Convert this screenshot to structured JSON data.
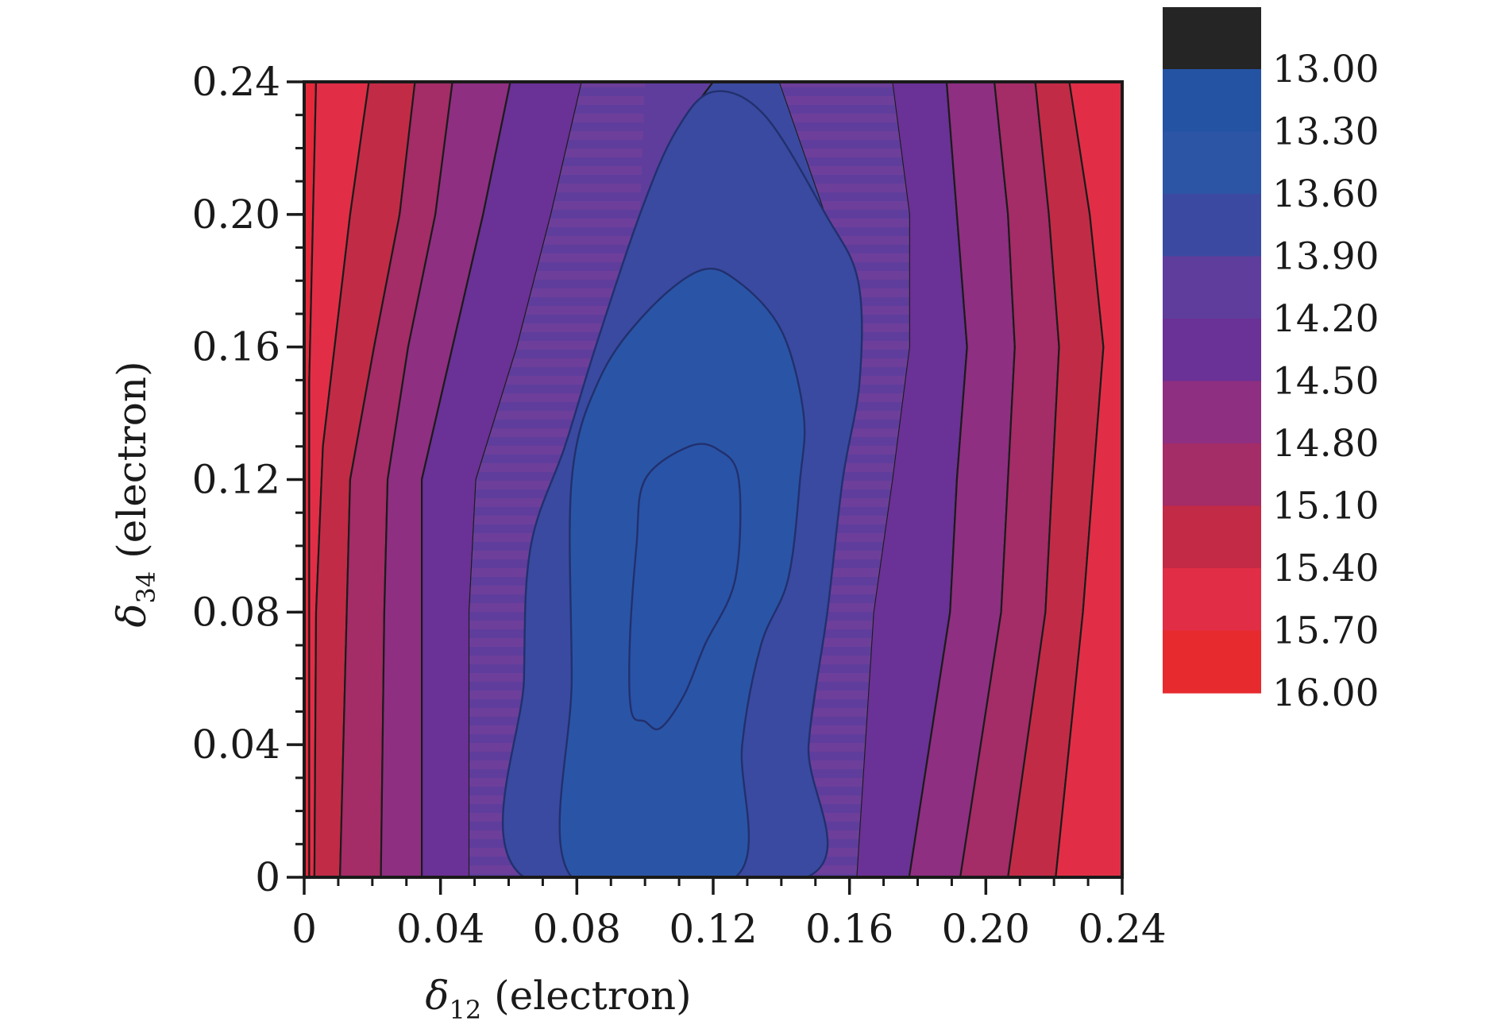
{
  "chart_data": {
    "type": "heatmap",
    "subtype": "filled-contour",
    "title": "",
    "xlabel": {
      "symbol": "δ",
      "sub": "12",
      "unit": " (electron)"
    },
    "ylabel": {
      "symbol": "δ",
      "sub": "34",
      "unit": " (electron)"
    },
    "xlim": [
      0,
      0.24
    ],
    "ylim": [
      0,
      0.24
    ],
    "x_ticks": [
      "0",
      "0.04",
      "0.08",
      "0.12",
      "0.16",
      "0.20",
      "0.24"
    ],
    "y_ticks": [
      "0",
      "0.04",
      "0.08",
      "0.12",
      "0.16",
      "0.20",
      "0.24"
    ],
    "x_minor_step": 0.01,
    "y_minor_step": 0.01,
    "grid": false,
    "colorbar": {
      "position": "right",
      "levels": [
        "13.00",
        "13.30",
        "13.60",
        "13.90",
        "14.20",
        "14.50",
        "14.80",
        "15.10",
        "15.40",
        "15.70",
        "16.00"
      ],
      "colors": [
        "#252525",
        "#2453a4",
        "#2d55a6",
        "#3b4aa0",
        "#5f3d9c",
        "#6a3196",
        "#8e2f81",
        "#a42c67",
        "#c22a45",
        "#e12e46",
        "#e72a2e"
      ]
    },
    "contours": [
      {
        "level": 13.6,
        "color": "#2953a6",
        "points": [
          [
            0.1,
            0.047
          ],
          [
            0.096,
            0.05
          ],
          [
            0.0955,
            0.07
          ],
          [
            0.0975,
            0.1
          ],
          [
            0.1,
            0.12
          ],
          [
            0.113,
            0.13
          ],
          [
            0.1215,
            0.129
          ],
          [
            0.1275,
            0.12
          ],
          [
            0.1265,
            0.09
          ],
          [
            0.1175,
            0.07
          ],
          [
            0.1115,
            0.055
          ],
          [
            0.1045,
            0.045
          ]
        ]
      },
      {
        "level": 13.9,
        "color": "#2a55a6",
        "points": [
          [
            0.0785,
            0
          ],
          [
            0.0785,
            0.06
          ],
          [
            0.0785,
            0.12
          ],
          [
            0.0865,
            0.15
          ],
          [
            0.1,
            0.17
          ],
          [
            0.116,
            0.183
          ],
          [
            0.127,
            0.18
          ],
          [
            0.14,
            0.165
          ],
          [
            0.1465,
            0.14
          ],
          [
            0.1455,
            0.12
          ],
          [
            0.142,
            0.09
          ],
          [
            0.134,
            0.07
          ],
          [
            0.1285,
            0.04
          ],
          [
            0.1265,
            0
          ]
        ]
      },
      {
        "level": 14.2,
        "color": "#3a4aa0",
        "points": [
          [
            0.0645,
            0
          ],
          [
            0.0645,
            0.06
          ],
          [
            0.0665,
            0.1
          ],
          [
            0.0765,
            0.13
          ],
          [
            0.0855,
            0.16
          ],
          [
            0.0985,
            0.2
          ],
          [
            0.109,
            0.225
          ],
          [
            0.12,
            0.237
          ],
          [
            0.135,
            0.23
          ],
          [
            0.153,
            0.2
          ],
          [
            0.1625,
            0.18
          ],
          [
            0.163,
            0.15
          ],
          [
            0.158,
            0.12
          ],
          [
            0.1535,
            0.08
          ],
          [
            0.148,
            0.04
          ],
          [
            0.1475,
            0
          ]
        ]
      }
    ],
    "bands": [
      {
        "color": "#e5293a",
        "left": [
          [
            0,
            0
          ],
          [
            0,
            0.24
          ]
        ],
        "right": [
          [
            0.0035,
            0.24
          ],
          [
            0.0015,
            0.15
          ],
          [
            0.0015,
            0
          ]
        ]
      },
      {
        "color": "#e12e46",
        "left": [
          [
            0.0015,
            0
          ],
          [
            0.0015,
            0.15
          ],
          [
            0.0035,
            0.24
          ]
        ],
        "right": [
          [
            0.019,
            0.24
          ],
          [
            0.0135,
            0.2
          ],
          [
            0.0055,
            0.13
          ],
          [
            0.0035,
            0.08
          ],
          [
            0.003,
            0
          ]
        ]
      },
      {
        "color": "#c22b46",
        "left": [
          [
            0.003,
            0
          ],
          [
            0.0035,
            0.08
          ],
          [
            0.0055,
            0.13
          ],
          [
            0.0135,
            0.2
          ],
          [
            0.019,
            0.24
          ]
        ],
        "right": [
          [
            0.0325,
            0.24
          ],
          [
            0.028,
            0.2
          ],
          [
            0.0205,
            0.16
          ],
          [
            0.0135,
            0.12
          ],
          [
            0.0125,
            0.08
          ],
          [
            0.0105,
            0
          ]
        ]
      },
      {
        "color": "#a42c67",
        "left": [
          [
            0.0105,
            0
          ],
          [
            0.0125,
            0.08
          ],
          [
            0.0135,
            0.12
          ],
          [
            0.0205,
            0.16
          ],
          [
            0.028,
            0.2
          ],
          [
            0.0325,
            0.24
          ]
        ],
        "right": [
          [
            0.0435,
            0.24
          ],
          [
            0.0385,
            0.2
          ],
          [
            0.0305,
            0.16
          ],
          [
            0.0245,
            0.12
          ],
          [
            0.0235,
            0.08
          ],
          [
            0.0225,
            0
          ]
        ]
      },
      {
        "color": "#8e2f81",
        "left": [
          [
            0.0225,
            0
          ],
          [
            0.0235,
            0.08
          ],
          [
            0.0245,
            0.12
          ],
          [
            0.0305,
            0.16
          ],
          [
            0.0385,
            0.2
          ],
          [
            0.0435,
            0.24
          ]
        ],
        "right": [
          [
            0.0605,
            0.24
          ],
          [
            0.0525,
            0.2
          ],
          [
            0.0435,
            0.16
          ],
          [
            0.0345,
            0.12
          ],
          [
            0.0345,
            0.08
          ],
          [
            0.0345,
            0
          ]
        ]
      },
      {
        "color": "#6a3196",
        "left": [
          [
            0.0345,
            0
          ],
          [
            0.0345,
            0.08
          ],
          [
            0.0345,
            0.12
          ],
          [
            0.0435,
            0.16
          ],
          [
            0.0525,
            0.2
          ],
          [
            0.0605,
            0.24
          ]
        ],
        "right": [
          [
            0.0815,
            0.24
          ],
          [
            0.0725,
            0.2
          ],
          [
            0.0625,
            0.16
          ],
          [
            0.0505,
            0.12
          ],
          [
            0.0485,
            0.08
          ],
          [
            0.0485,
            0
          ]
        ]
      },
      {
        "color": "#5f3d9c",
        "left": [
          [
            0.0485,
            0
          ],
          [
            0.0485,
            0.08
          ],
          [
            0.0505,
            0.12
          ],
          [
            0.0625,
            0.16
          ],
          [
            0.0725,
            0.2
          ],
          [
            0.0815,
            0.24
          ]
        ],
        "right": [
          [
            0.1725,
            0.24
          ],
          [
            0.1775,
            0.2
          ],
          [
            0.1775,
            0.16
          ],
          [
            0.1725,
            0.12
          ],
          [
            0.167,
            0.08
          ],
          [
            0.162,
            0
          ]
        ]
      },
      {
        "color": "#3b4aa0",
        "left": [
          [
            0.0645,
            0
          ],
          [
            0.0645,
            0.06
          ],
          [
            0.0665,
            0.1
          ],
          [
            0.0765,
            0.13
          ],
          [
            0.0855,
            0.16
          ],
          [
            0.0985,
            0.2
          ],
          [
            0.109,
            0.225
          ],
          [
            0.12,
            0.24
          ]
        ],
        "right": [
          [
            0.1395,
            0.24
          ],
          [
            0.153,
            0.2
          ],
          [
            0.1625,
            0.18
          ],
          [
            0.163,
            0.15
          ],
          [
            0.158,
            0.12
          ],
          [
            0.1535,
            0.08
          ],
          [
            0.148,
            0.04
          ],
          [
            0.1475,
            0
          ]
        ]
      },
      {
        "color": "#6a3196",
        "left": [
          [
            0.162,
            0
          ],
          [
            0.167,
            0.08
          ],
          [
            0.1725,
            0.12
          ],
          [
            0.1775,
            0.16
          ],
          [
            0.1775,
            0.2
          ],
          [
            0.1725,
            0.24
          ]
        ],
        "right": [
          [
            0.1885,
            0.24
          ],
          [
            0.1915,
            0.2
          ],
          [
            0.1945,
            0.16
          ],
          [
            0.1915,
            0.12
          ],
          [
            0.1895,
            0.08
          ],
          [
            0.1775,
            0
          ]
        ]
      },
      {
        "color": "#8e2f81",
        "left": [
          [
            0.1775,
            0
          ],
          [
            0.1895,
            0.08
          ],
          [
            0.1915,
            0.12
          ],
          [
            0.1945,
            0.16
          ],
          [
            0.1915,
            0.2
          ],
          [
            0.1885,
            0.24
          ]
        ],
        "right": [
          [
            0.2025,
            0.24
          ],
          [
            0.2065,
            0.2
          ],
          [
            0.2085,
            0.16
          ],
          [
            0.2065,
            0.12
          ],
          [
            0.2045,
            0.08
          ],
          [
            0.1925,
            0
          ]
        ]
      },
      {
        "color": "#a42c67",
        "left": [
          [
            0.1925,
            0
          ],
          [
            0.2045,
            0.08
          ],
          [
            0.2065,
            0.12
          ],
          [
            0.2085,
            0.16
          ],
          [
            0.2065,
            0.2
          ],
          [
            0.2025,
            0.24
          ]
        ],
        "right": [
          [
            0.2145,
            0.24
          ],
          [
            0.2185,
            0.2
          ],
          [
            0.2215,
            0.16
          ],
          [
            0.2195,
            0.12
          ],
          [
            0.2175,
            0.08
          ],
          [
            0.2065,
            0
          ]
        ]
      },
      {
        "color": "#c22b46",
        "left": [
          [
            0.2065,
            0
          ],
          [
            0.2175,
            0.08
          ],
          [
            0.2195,
            0.12
          ],
          [
            0.2215,
            0.16
          ],
          [
            0.2185,
            0.2
          ],
          [
            0.2145,
            0.24
          ]
        ],
        "right": [
          [
            0.2245,
            0.24
          ],
          [
            0.2305,
            0.2
          ],
          [
            0.2345,
            0.16
          ],
          [
            0.2315,
            0.12
          ],
          [
            0.2285,
            0.08
          ],
          [
            0.2205,
            0
          ]
        ]
      },
      {
        "color": "#e12e46",
        "left": [
          [
            0.2205,
            0
          ],
          [
            0.2285,
            0.08
          ],
          [
            0.2315,
            0.12
          ],
          [
            0.2345,
            0.16
          ],
          [
            0.2305,
            0.2
          ],
          [
            0.2245,
            0.24
          ]
        ],
        "right": [
          [
            0.24,
            0.24
          ],
          [
            0.24,
            0
          ]
        ]
      }
    ],
    "hatched_bands": [
      {
        "left": [
          [
            0.0485,
            0
          ],
          [
            0.0485,
            0.08
          ],
          [
            0.0505,
            0.12
          ],
          [
            0.0625,
            0.16
          ],
          [
            0.0725,
            0.2
          ],
          [
            0.0815,
            0.24
          ]
        ],
        "right": [
          [
            0.1,
            0.24
          ],
          [
            0.0985,
            0.2
          ],
          [
            0.0855,
            0.16
          ],
          [
            0.0765,
            0.13
          ],
          [
            0.0665,
            0.1
          ],
          [
            0.0645,
            0.06
          ],
          [
            0.0645,
            0
          ]
        ]
      },
      {
        "left": [
          [
            0.1475,
            0
          ],
          [
            0.148,
            0.04
          ],
          [
            0.1535,
            0.08
          ],
          [
            0.158,
            0.12
          ],
          [
            0.163,
            0.15
          ],
          [
            0.1625,
            0.18
          ],
          [
            0.153,
            0.2
          ],
          [
            0.1395,
            0.24
          ]
        ],
        "right": [
          [
            0.1725,
            0.24
          ],
          [
            0.1775,
            0.2
          ],
          [
            0.1775,
            0.16
          ],
          [
            0.1725,
            0.12
          ],
          [
            0.167,
            0.08
          ],
          [
            0.162,
            0
          ]
        ]
      }
    ]
  }
}
